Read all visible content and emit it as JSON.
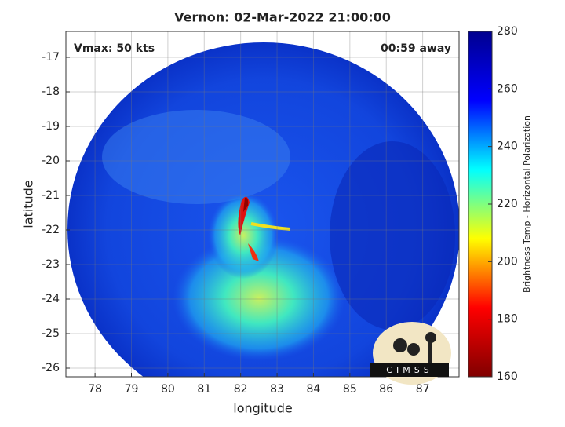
{
  "chart_data": {
    "type": "image",
    "title": "Vernon: 02-Mar-2022 21:00:00",
    "annotations": [
      "Vmax: 50 kts",
      "00:59 away"
    ],
    "xlabel": "longitude",
    "ylabel": "latitude",
    "xlim": [
      77.2,
      88.0
    ],
    "xticks": [
      78,
      79,
      80,
      81,
      82,
      83,
      84,
      85,
      86,
      87
    ],
    "ylim": [
      -26.25,
      -16.25
    ],
    "yticks": [
      -26,
      -25,
      -24,
      -23,
      -22,
      -21,
      -20,
      -19,
      -18,
      -17
    ],
    "grid": true,
    "colorbar": {
      "label": "Brightness Temp - Horizontal Polarization",
      "clim": [
        160,
        280
      ],
      "ticks": [
        160,
        180,
        200,
        220,
        240,
        260,
        280
      ],
      "colormap": [
        "#800000",
        "#ff0000",
        "#ffff00",
        "#00ffff",
        "#0000ff",
        "#00008f"
      ]
    },
    "logo": "CIMSS"
  }
}
